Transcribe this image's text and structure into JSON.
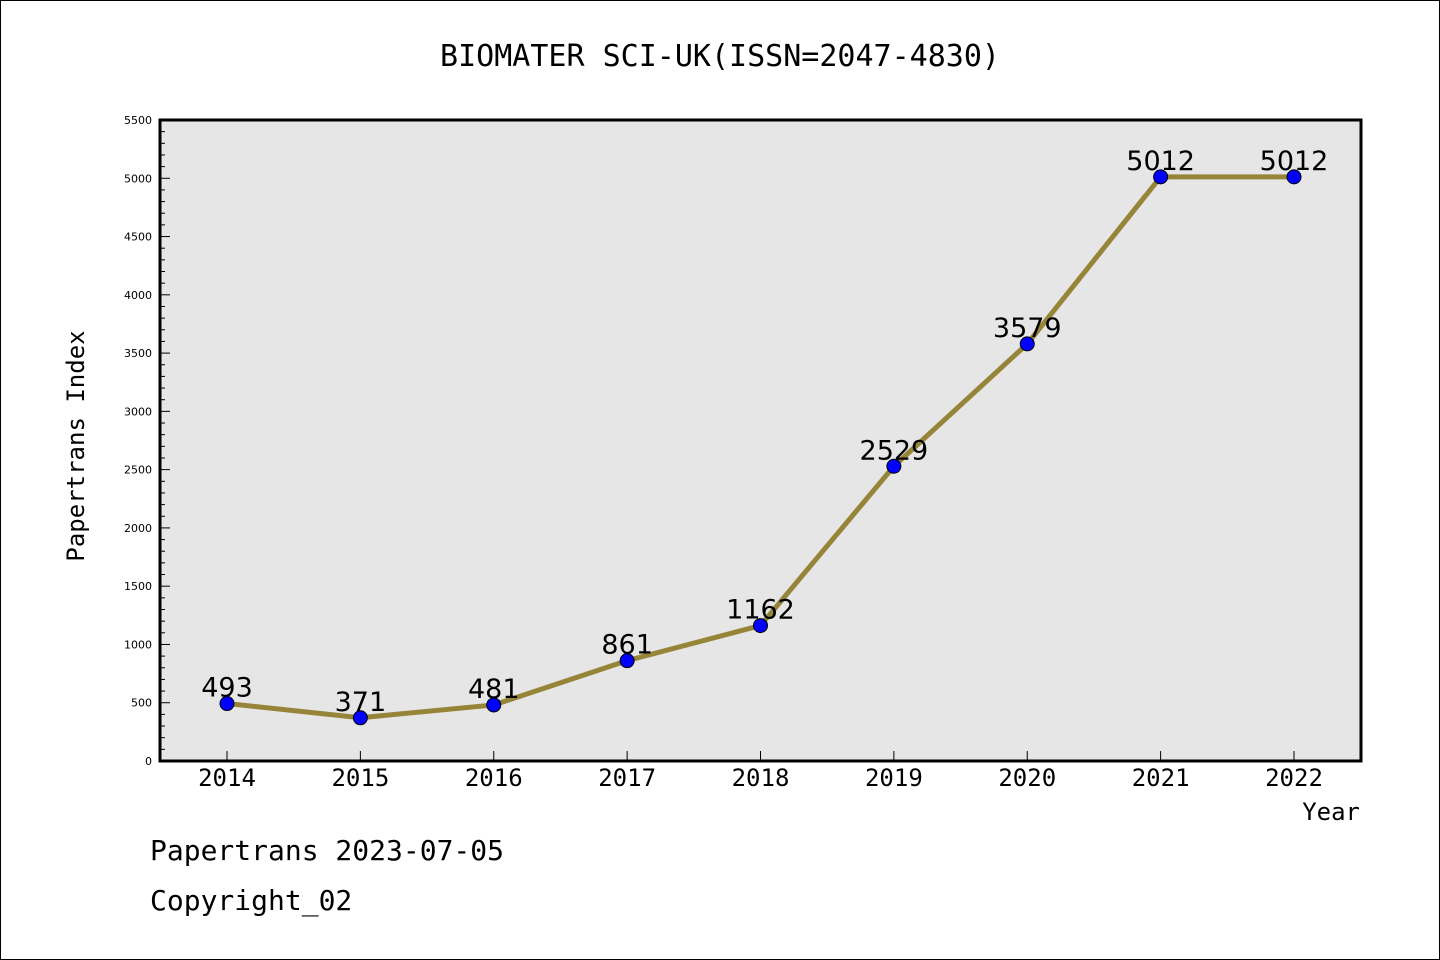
{
  "footer": {
    "line1": "Papertrans 2023-07-05",
    "line2": "Copyright_02"
  },
  "chart_data": {
    "type": "line",
    "title": "BIOMATER SCI-UK(ISSN=2047-4830)",
    "xlabel": "Year",
    "ylabel": "Papertrans Index",
    "categories": [
      "2014",
      "2015",
      "2016",
      "2017",
      "2018",
      "2019",
      "2020",
      "2021",
      "2022"
    ],
    "values": [
      493,
      371,
      481,
      861,
      1162,
      2529,
      3579,
      5012,
      5012
    ],
    "data_labels": [
      "493",
      "371",
      "481",
      "861",
      "1162",
      "2529",
      "3579",
      "5012",
      "5012"
    ],
    "ylim": [
      0,
      5500
    ],
    "yticks": [
      "0",
      "500",
      "1000",
      "1500",
      "2000",
      "2500",
      "3000",
      "3500",
      "4000",
      "4500",
      "5000",
      "5500"
    ],
    "grid": false,
    "legend": "none",
    "colors": {
      "line": "#968539",
      "marker": "#0000ff",
      "plot_background": "#e6e6e6",
      "axis": "#000000"
    }
  }
}
